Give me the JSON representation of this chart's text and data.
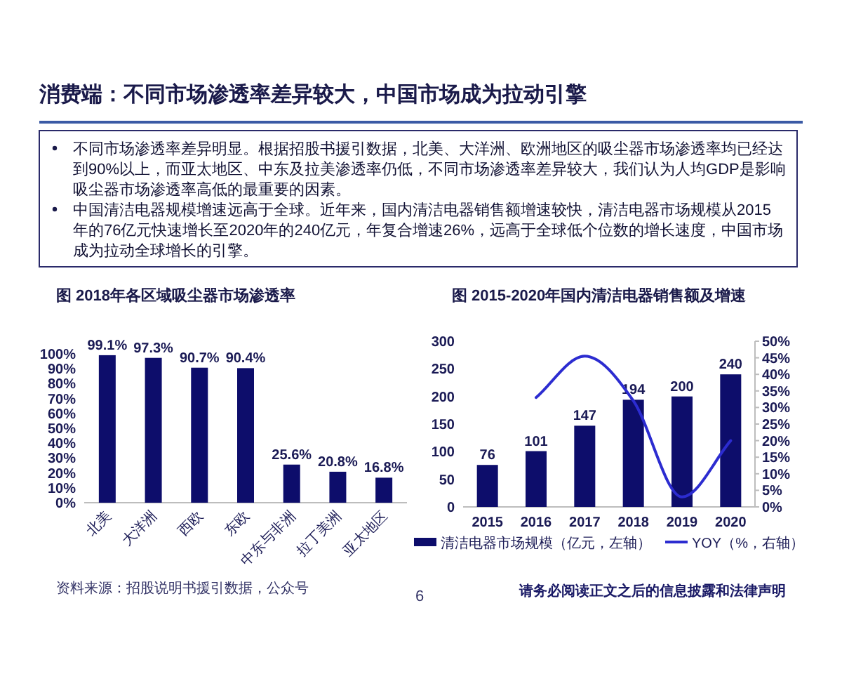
{
  "chart_data": [
    {
      "type": "other",
      "title": "消费端：不同市场渗透率差异较大，中国市场成为拉动引擎",
      "annotations": [
        "不同市场渗透率差异明显。根据招股书援引数据，北美、大洋洲、欧洲地区的吸尘器市场渗透率均已经达到90%以上，而亚太地区、中东及拉美渗透率仍低，不同市场渗透率差异较大，我们认为人均GDP是影响吸尘器市场渗透率高低的最重要的因素。",
        "中国清洁电器规模增速远高于全球。近年来，国内清洁电器销售额增速较快，清洁电器市场规模从2015年的76亿元快速增长至2020年的240亿元，年复合增速26%，远高于全球低个位数的增长速度，中国市场成为拉动全球增长的引擎。"
      ]
    },
    {
      "type": "bar",
      "title": "图 2018年各区域吸尘器市场渗透率",
      "categories": [
        "北美",
        "大洋洲",
        "西欧",
        "东欧",
        "中东与非洲",
        "拉丁美洲",
        "亚太地区"
      ],
      "values": [
        99.1,
        97.3,
        90.7,
        90.4,
        25.6,
        20.8,
        16.8
      ],
      "value_labels": [
        "99.1%",
        "97.3%",
        "90.7%",
        "90.4%",
        "25.6%",
        "20.8%",
        "16.8%"
      ],
      "color": "#0d0d6b",
      "ylim": [
        0,
        100
      ],
      "yticks": [
        {
          "value": 0,
          "label": "0%"
        },
        {
          "value": 10,
          "label": "10%"
        },
        {
          "value": 20,
          "label": "20%"
        },
        {
          "value": 30,
          "label": "30%"
        },
        {
          "value": 40,
          "label": "40%"
        },
        {
          "value": 50,
          "label": "50%"
        },
        {
          "value": 60,
          "label": "60%"
        },
        {
          "value": 70,
          "label": "70%"
        },
        {
          "value": 80,
          "label": "80%"
        },
        {
          "value": 90,
          "label": "90%"
        },
        {
          "value": 100,
          "label": "100%"
        }
      ]
    },
    {
      "type": "bar",
      "title": "图 2015-2020年国内清洁电器销售额及增速",
      "categories": [
        "2015",
        "2016",
        "2017",
        "2018",
        "2019",
        "2020"
      ],
      "series": [
        {
          "name": "清洁电器市场规模（亿元，左轴）",
          "type": "bar",
          "color": "#0d0d6b",
          "values": [
            76,
            101,
            147,
            194,
            200,
            240
          ],
          "value_labels": [
            "76",
            "101",
            "147",
            "194",
            "200",
            "240"
          ]
        },
        {
          "name": "YOY（%，右轴）",
          "type": "line",
          "axis": "y2",
          "color": "#2c2cd0",
          "values": [
            null,
            33,
            45.5,
            32,
            3,
            20
          ]
        }
      ],
      "ylim": [
        0,
        300
      ],
      "yticks": [
        0,
        50,
        100,
        150,
        200,
        250,
        300
      ],
      "y2lim": [
        0,
        50
      ],
      "y2ticks": [
        {
          "value": 0,
          "label": "0%"
        },
        {
          "value": 5,
          "label": "5%"
        },
        {
          "value": 10,
          "label": "10%"
        },
        {
          "value": 15,
          "label": "15%"
        },
        {
          "value": 20,
          "label": "20%"
        },
        {
          "value": 25,
          "label": "25%"
        },
        {
          "value": 30,
          "label": "30%"
        },
        {
          "value": 35,
          "label": "35%"
        },
        {
          "value": 40,
          "label": "40%"
        },
        {
          "value": 45,
          "label": "45%"
        },
        {
          "value": 50,
          "label": "50%"
        }
      ],
      "legend": "bottom"
    },
    {
      "type": "other",
      "annotations": [
        "资料来源：招股说明书援引数据，公众号",
        "6",
        "请务必阅读正文之后的信息披露和法律声明"
      ]
    }
  ]
}
